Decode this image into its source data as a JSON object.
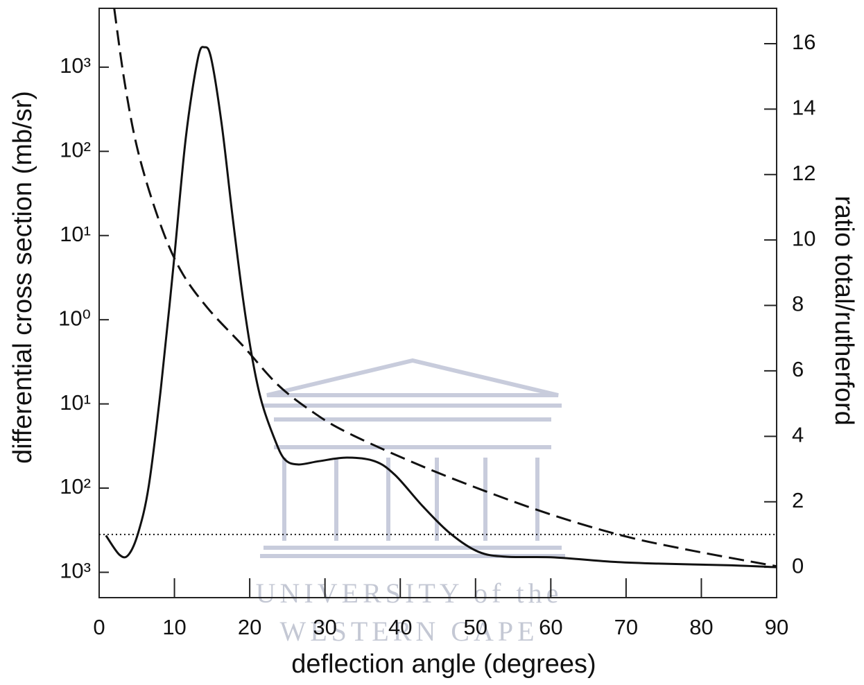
{
  "chart_data": {
    "type": "line",
    "xlabel": "deflection angle (degrees)",
    "ylabel": "differential cross section (mb/sr)",
    "y2label": "ratio total/rutherford",
    "xlim": [
      0,
      90
    ],
    "xticks": [
      0,
      10,
      20,
      30,
      40,
      50,
      60,
      70,
      80,
      90
    ],
    "ylim": [
      0.0005,
      5000
    ],
    "yscale": "log",
    "yticks": [
      {
        "value": 1000,
        "label": "10³"
      },
      {
        "value": 100,
        "label": "10²"
      },
      {
        "value": 10,
        "label": "10¹"
      },
      {
        "value": 1,
        "label": "10⁰"
      },
      {
        "value": 0.1,
        "label": "10¹"
      },
      {
        "value": 0.01,
        "label": "10²"
      },
      {
        "value": 0.001,
        "label": "10³"
      }
    ],
    "y2lim": [
      -0.93,
      17.08
    ],
    "y2ticks": [
      0,
      2,
      4,
      6,
      8,
      10,
      12,
      14,
      16
    ],
    "watermark": [
      "UNIVERSITY of the",
      "WESTERN CAPE"
    ],
    "series": [
      {
        "color": "#111111",
        "style": "solid",
        "axis": "y2",
        "x": [
          0.9,
          2.7,
          3.9,
          5.2,
          6.6,
          8.2,
          9.9,
          11.5,
          13.1,
          14.0,
          14.9,
          16.3,
          17.7,
          19.1,
          20.4,
          21.6,
          23.2,
          24.6,
          26.4,
          29.2,
          32.9,
          36.6,
          39.3,
          43.0,
          46.7,
          50.4,
          54.1,
          60.5,
          67.9,
          74.3,
          83.5,
          90
        ],
        "values": [
          0.97,
          0.38,
          0.38,
          1.06,
          2.5,
          5.47,
          9.28,
          13.1,
          15.53,
          15.89,
          15.53,
          13.5,
          10.76,
          8.22,
          6.31,
          5.04,
          3.98,
          3.31,
          3.14,
          3.24,
          3.35,
          3.24,
          2.82,
          1.86,
          1.02,
          0.47,
          0.32,
          0.3,
          0.17,
          0.11,
          0.06,
          0
        ]
      },
      {
        "color": "#111111",
        "style": "dashed",
        "axis": "y",
        "x": [
          2.0,
          3.4,
          5.2,
          8.0,
          10.8,
          14.4,
          19.1,
          23.7,
          28.3,
          32.9,
          42.1,
          51.3,
          60.5,
          69.7,
          78.9,
          90
        ],
        "values": [
          5000,
          646,
          97,
          14.7,
          3.9,
          1.38,
          0.49,
          0.17,
          0.081,
          0.046,
          0.0195,
          0.0092,
          0.0047,
          0.0027,
          0.0018,
          0.00118
        ]
      },
      {
        "color": "#111111",
        "style": "dotted",
        "axis": "y2",
        "x": [
          0,
          90
        ],
        "values": [
          1,
          1
        ]
      }
    ]
  }
}
